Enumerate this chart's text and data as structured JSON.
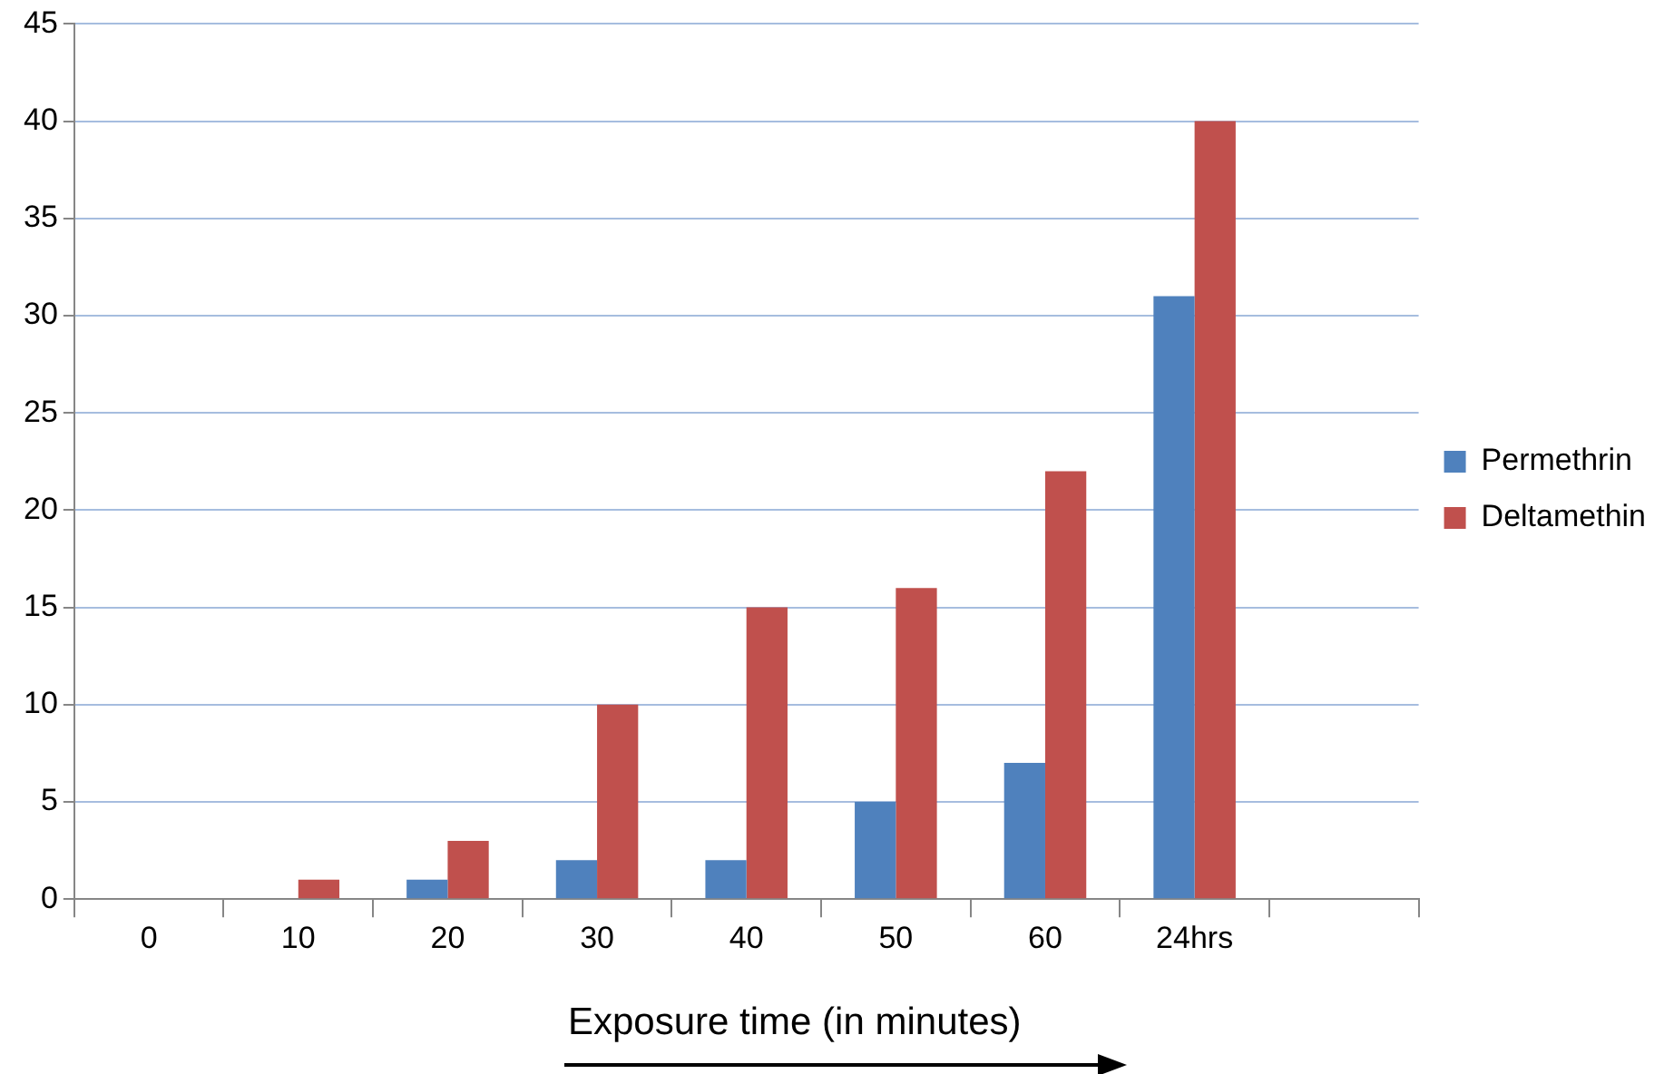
{
  "chart_data": {
    "type": "bar",
    "xlabel": "Exposure time (in minutes)",
    "categories": [
      "0",
      "10",
      "20",
      "30",
      "40",
      "50",
      "60",
      "24hrs",
      null
    ],
    "series": [
      {
        "name": "Permethrin",
        "color": "#4f81bd",
        "values": [
          0,
          0,
          1,
          2,
          2,
          5,
          7,
          31,
          null
        ]
      },
      {
        "name": "Deltamethin",
        "color": "#c0504d",
        "values": [
          0,
          1,
          3,
          10,
          15,
          16,
          22,
          40,
          null
        ]
      }
    ],
    "ylim": [
      0,
      45
    ],
    "yticks": [
      0,
      5,
      10,
      15,
      20,
      25,
      30,
      35,
      40,
      45
    ],
    "grid": "y",
    "legend": "right"
  }
}
